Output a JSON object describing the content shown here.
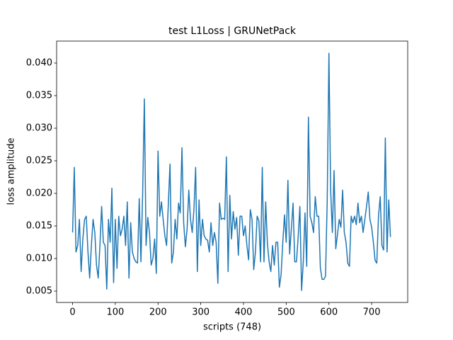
{
  "chart_data": {
    "type": "line",
    "title": "test L1Loss | GRUNetPack",
    "xlabel": "scripts (748)",
    "ylabel": "loss amplitude",
    "x": [
      0,
      4,
      8,
      12,
      16,
      20,
      24,
      28,
      32,
      36,
      40,
      44,
      48,
      52,
      56,
      60,
      64,
      68,
      72,
      76,
      80,
      84,
      88,
      92,
      96,
      100,
      104,
      108,
      112,
      116,
      120,
      124,
      128,
      132,
      136,
      140,
      144,
      148,
      152,
      156,
      160,
      164,
      168,
      172,
      176,
      180,
      184,
      188,
      192,
      196,
      200,
      204,
      208,
      212,
      216,
      220,
      224,
      228,
      232,
      236,
      240,
      244,
      248,
      252,
      256,
      260,
      264,
      268,
      272,
      276,
      280,
      284,
      288,
      292,
      296,
      300,
      304,
      308,
      312,
      316,
      320,
      324,
      328,
      332,
      336,
      340,
      344,
      348,
      352,
      356,
      360,
      364,
      368,
      372,
      376,
      380,
      384,
      388,
      392,
      396,
      400,
      404,
      408,
      412,
      416,
      420,
      424,
      428,
      432,
      436,
      440,
      444,
      448,
      452,
      456,
      460,
      464,
      468,
      472,
      476,
      480,
      484,
      488,
      492,
      496,
      500,
      504,
      508,
      512,
      516,
      520,
      524,
      528,
      532,
      536,
      540,
      544,
      548,
      552,
      556,
      560,
      564,
      568,
      572,
      576,
      580,
      584,
      588,
      592,
      596,
      600,
      604,
      608,
      612,
      616,
      620,
      624,
      628,
      632,
      636,
      640,
      644,
      648,
      652,
      656,
      660,
      664,
      668,
      672,
      676,
      680,
      684,
      688,
      692,
      696,
      700,
      704,
      708,
      712,
      716,
      720,
      724,
      728,
      732,
      736,
      740,
      744
    ],
    "series": [
      {
        "name": "loss",
        "color": "#1f77b4",
        "values": [
          0.014,
          0.024,
          0.011,
          0.012,
          0.016,
          0.008,
          0.013,
          0.016,
          0.0165,
          0.011,
          0.007,
          0.012,
          0.016,
          0.014,
          0.009,
          0.007,
          0.012,
          0.018,
          0.0125,
          0.012,
          0.0053,
          0.016,
          0.0125,
          0.0208,
          0.0063,
          0.016,
          0.0085,
          0.0165,
          0.0135,
          0.0145,
          0.0165,
          0.012,
          0.0187,
          0.007,
          0.0155,
          0.011,
          0.01,
          0.0095,
          0.0093,
          0.0192,
          0.0095,
          0.02,
          0.0345,
          0.012,
          0.0163,
          0.014,
          0.009,
          0.01,
          0.013,
          0.0077,
          0.0265,
          0.0165,
          0.0187,
          0.016,
          0.0135,
          0.012,
          0.0182,
          0.0245,
          0.0093,
          0.011,
          0.016,
          0.013,
          0.0185,
          0.017,
          0.027,
          0.0155,
          0.0118,
          0.0145,
          0.0205,
          0.016,
          0.014,
          0.0175,
          0.024,
          0.008,
          0.019,
          0.012,
          0.016,
          0.0135,
          0.013,
          0.0128,
          0.011,
          0.0155,
          0.012,
          0.014,
          0.0125,
          0.0062,
          0.0185,
          0.016,
          0.0162,
          0.016,
          0.0256,
          0.008,
          0.0197,
          0.013,
          0.0172,
          0.0145,
          0.0163,
          0.0105,
          0.0165,
          0.0165,
          0.0135,
          0.015,
          0.012,
          0.0098,
          0.0175,
          0.016,
          0.0083,
          0.011,
          0.0165,
          0.0158,
          0.0095,
          0.024,
          0.0095,
          0.0187,
          0.0123,
          0.0095,
          0.008,
          0.012,
          0.009,
          0.0125,
          0.0125,
          0.0056,
          0.0075,
          0.0125,
          0.0167,
          0.0125,
          0.022,
          0.0107,
          0.0145,
          0.0185,
          0.0095,
          0.0095,
          0.0133,
          0.018,
          0.0051,
          0.0095,
          0.017,
          0.0088,
          0.0317,
          0.0165,
          0.0155,
          0.014,
          0.0195,
          0.0165,
          0.0165,
          0.0085,
          0.0068,
          0.0068,
          0.0073,
          0.019,
          0.0415,
          0.0205,
          0.014,
          0.0235,
          0.0115,
          0.0137,
          0.016,
          0.0148,
          0.0205,
          0.014,
          0.0125,
          0.0093,
          0.0088,
          0.0165,
          0.0155,
          0.0165,
          0.0152,
          0.0185,
          0.0155,
          0.0165,
          0.014,
          0.016,
          0.018,
          0.0202,
          0.016,
          0.0148,
          0.0125,
          0.0097,
          0.0093,
          0.0165,
          0.0195,
          0.012,
          0.0113,
          0.0285,
          0.011,
          0.019,
          0.0133
        ]
      }
    ],
    "xlim": [
      -37.35,
      784.35
    ],
    "xticks": [
      0,
      100,
      200,
      300,
      400,
      500,
      600,
      700
    ],
    "ylim": [
      0.00326,
      0.04337
    ],
    "yticks": [
      0.005,
      {
        "value": 0.01,
        "label": "0.010"
      },
      0.015,
      {
        "value": 0.02,
        "label": "0.020"
      },
      0.025,
      {
        "value": 0.03,
        "label": "0.030"
      },
      0.035,
      {
        "value": 0.04,
        "label": "0.040"
      }
    ]
  }
}
